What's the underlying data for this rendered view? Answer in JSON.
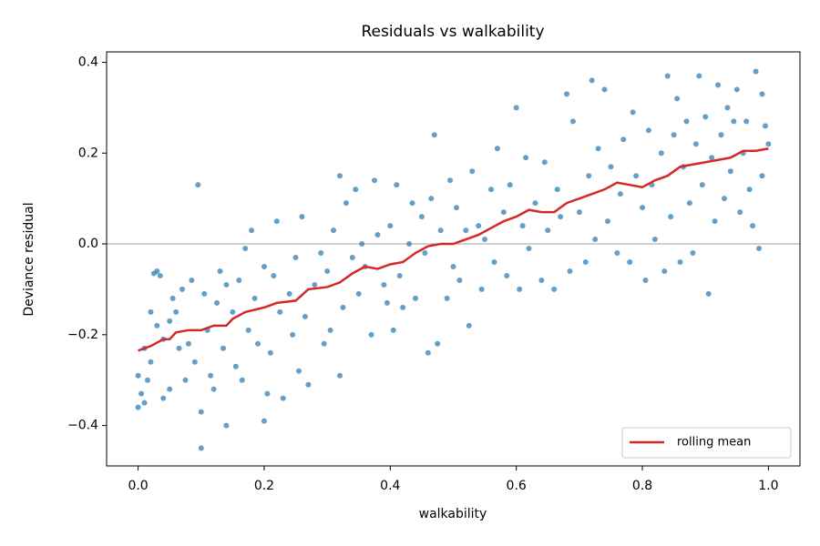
{
  "chart_data": {
    "type": "scatter",
    "title": "Residuals vs walkability",
    "x_label": "walkability",
    "y_label": "Deviance residual",
    "xlim": [
      -0.05,
      1.05
    ],
    "ylim": [
      -0.489,
      0.423
    ],
    "xticks": [
      {
        "value": 0,
        "label": "0.0"
      },
      0.2,
      0.4,
      0.6,
      0.8,
      {
        "value": 1,
        "label": "1.0"
      }
    ],
    "yticks": [
      {
        "value": -0.4,
        "label": "−0.4"
      },
      {
        "value": -0.2,
        "label": "−0.2"
      },
      {
        "value": 0,
        "label": "0.0"
      },
      0.2,
      0.4
    ],
    "hline": 0,
    "legend": "lower right",
    "scatter": {
      "color": "#1f77b4",
      "x": [
        0.0,
        0.0,
        0.005,
        0.01,
        0.01,
        0.015,
        0.02,
        0.02,
        0.025,
        0.03,
        0.03,
        0.035,
        0.04,
        0.04,
        0.05,
        0.05,
        0.055,
        0.06,
        0.065,
        0.07,
        0.075,
        0.08,
        0.085,
        0.09,
        0.095,
        0.1,
        0.1,
        0.105,
        0.11,
        0.115,
        0.12,
        0.125,
        0.13,
        0.135,
        0.14,
        0.14,
        0.15,
        0.155,
        0.16,
        0.165,
        0.17,
        0.175,
        0.18,
        0.185,
        0.19,
        0.2,
        0.2,
        0.205,
        0.21,
        0.215,
        0.22,
        0.225,
        0.23,
        0.24,
        0.245,
        0.25,
        0.255,
        0.26,
        0.265,
        0.27,
        0.28,
        0.29,
        0.295,
        0.3,
        0.305,
        0.31,
        0.32,
        0.32,
        0.325,
        0.33,
        0.34,
        0.345,
        0.35,
        0.355,
        0.36,
        0.37,
        0.375,
        0.38,
        0.39,
        0.395,
        0.4,
        0.405,
        0.41,
        0.415,
        0.42,
        0.43,
        0.435,
        0.44,
        0.45,
        0.455,
        0.46,
        0.465,
        0.47,
        0.475,
        0.48,
        0.49,
        0.495,
        0.5,
        0.505,
        0.51,
        0.52,
        0.525,
        0.53,
        0.54,
        0.545,
        0.55,
        0.56,
        0.565,
        0.57,
        0.58,
        0.585,
        0.59,
        0.6,
        0.605,
        0.61,
        0.615,
        0.62,
        0.63,
        0.64,
        0.645,
        0.65,
        0.66,
        0.665,
        0.67,
        0.68,
        0.685,
        0.69,
        0.7,
        0.71,
        0.715,
        0.72,
        0.725,
        0.73,
        0.74,
        0.745,
        0.75,
        0.76,
        0.765,
        0.77,
        0.78,
        0.785,
        0.79,
        0.8,
        0.805,
        0.81,
        0.815,
        0.82,
        0.83,
        0.835,
        0.84,
        0.845,
        0.85,
        0.855,
        0.86,
        0.865,
        0.87,
        0.875,
        0.88,
        0.885,
        0.89,
        0.895,
        0.9,
        0.905,
        0.91,
        0.915,
        0.92,
        0.925,
        0.93,
        0.935,
        0.94,
        0.945,
        0.95,
        0.955,
        0.96,
        0.965,
        0.97,
        0.975,
        0.98,
        0.985,
        0.99,
        0.99,
        0.995,
        1.0
      ],
      "y": [
        -0.29,
        -0.36,
        -0.33,
        -0.35,
        -0.23,
        -0.3,
        -0.15,
        -0.26,
        -0.065,
        -0.06,
        -0.18,
        -0.07,
        -0.34,
        -0.21,
        -0.32,
        -0.17,
        -0.12,
        -0.15,
        -0.23,
        -0.1,
        -0.3,
        -0.22,
        -0.08,
        -0.26,
        0.13,
        -0.45,
        -0.37,
        -0.11,
        -0.19,
        -0.29,
        -0.32,
        -0.13,
        -0.06,
        -0.23,
        -0.4,
        -0.09,
        -0.15,
        -0.27,
        -0.08,
        -0.3,
        -0.01,
        -0.19,
        0.03,
        -0.12,
        -0.22,
        -0.05,
        -0.39,
        -0.33,
        -0.24,
        -0.07,
        0.05,
        -0.15,
        -0.34,
        -0.11,
        -0.2,
        -0.03,
        -0.28,
        0.06,
        -0.16,
        -0.31,
        -0.09,
        -0.02,
        -0.22,
        -0.06,
        -0.19,
        0.03,
        0.15,
        -0.29,
        -0.14,
        0.09,
        -0.03,
        0.12,
        -0.11,
        0.0,
        -0.05,
        -0.2,
        0.14,
        0.02,
        -0.09,
        -0.13,
        0.04,
        -0.19,
        0.13,
        -0.07,
        -0.14,
        0.0,
        0.09,
        -0.12,
        0.06,
        -0.02,
        -0.24,
        0.1,
        0.24,
        -0.22,
        0.03,
        -0.12,
        0.14,
        -0.05,
        0.08,
        -0.08,
        0.03,
        -0.18,
        0.16,
        0.04,
        -0.1,
        0.01,
        0.12,
        -0.04,
        0.21,
        0.07,
        -0.07,
        0.13,
        0.3,
        -0.1,
        0.04,
        0.19,
        -0.01,
        0.09,
        -0.08,
        0.18,
        0.03,
        -0.1,
        0.12,
        0.06,
        0.33,
        -0.06,
        0.27,
        0.07,
        -0.04,
        0.15,
        0.36,
        0.01,
        0.21,
        0.34,
        0.05,
        0.17,
        -0.02,
        0.11,
        0.23,
        -0.04,
        0.29,
        0.15,
        0.08,
        -0.08,
        0.25,
        0.13,
        0.01,
        0.2,
        -0.06,
        0.37,
        0.06,
        0.24,
        0.32,
        -0.04,
        0.17,
        0.27,
        0.09,
        -0.02,
        0.22,
        0.37,
        0.13,
        0.28,
        -0.11,
        0.19,
        0.05,
        0.35,
        0.24,
        0.1,
        0.3,
        0.16,
        0.27,
        0.34,
        0.07,
        0.2,
        0.27,
        0.12,
        0.04,
        0.38,
        -0.01,
        0.33,
        0.15,
        0.26,
        0.22
      ]
    },
    "series": [
      {
        "name": "rolling mean",
        "color": "#d62728",
        "x": [
          0.0,
          0.02,
          0.04,
          0.05,
          0.06,
          0.08,
          0.1,
          0.12,
          0.14,
          0.15,
          0.17,
          0.2,
          0.22,
          0.25,
          0.27,
          0.3,
          0.32,
          0.34,
          0.36,
          0.38,
          0.4,
          0.42,
          0.44,
          0.46,
          0.48,
          0.5,
          0.52,
          0.54,
          0.56,
          0.58,
          0.6,
          0.62,
          0.64,
          0.66,
          0.68,
          0.7,
          0.72,
          0.74,
          0.76,
          0.78,
          0.8,
          0.82,
          0.84,
          0.86,
          0.88,
          0.9,
          0.92,
          0.94,
          0.96,
          0.98,
          1.0
        ],
        "values": [
          -0.235,
          -0.225,
          -0.21,
          -0.21,
          -0.195,
          -0.19,
          -0.19,
          -0.18,
          -0.18,
          -0.165,
          -0.15,
          -0.14,
          -0.13,
          -0.125,
          -0.1,
          -0.095,
          -0.085,
          -0.065,
          -0.05,
          -0.055,
          -0.045,
          -0.04,
          -0.02,
          -0.005,
          0.0,
          0.0,
          0.01,
          0.02,
          0.035,
          0.05,
          0.06,
          0.075,
          0.07,
          0.07,
          0.09,
          0.1,
          0.11,
          0.12,
          0.135,
          0.13,
          0.125,
          0.14,
          0.15,
          0.17,
          0.175,
          0.18,
          0.185,
          0.19,
          0.205,
          0.205,
          0.21
        ]
      }
    ]
  }
}
